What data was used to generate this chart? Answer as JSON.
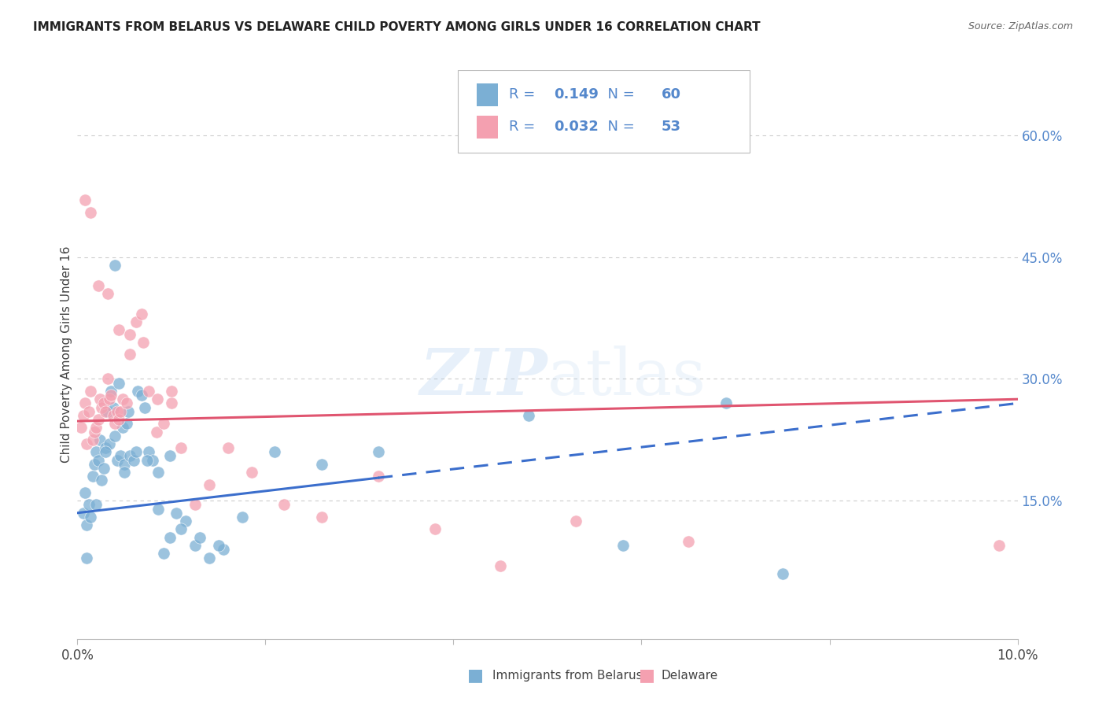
{
  "title": "IMMIGRANTS FROM BELARUS VS DELAWARE CHILD POVERTY AMONG GIRLS UNDER 16 CORRELATION CHART",
  "source": "Source: ZipAtlas.com",
  "ylabel": "Child Poverty Among Girls Under 16",
  "xlim": [
    0.0,
    10.0
  ],
  "ylim": [
    -2.0,
    68.0
  ],
  "right_yticks": [
    15.0,
    30.0,
    45.0,
    60.0
  ],
  "right_ytick_labels": [
    "15.0%",
    "30.0%",
    "45.0%",
    "60.0%"
  ],
  "legend_r1": "0.149",
  "legend_n1": "60",
  "legend_r2": "0.032",
  "legend_n2": "53",
  "blue_color": "#7BAFD4",
  "pink_color": "#F4A0B0",
  "blue_line_color": "#3B6ECC",
  "pink_line_color": "#E05570",
  "text_color": "#5588CC",
  "blue_scatter_x": [
    0.06,
    0.08,
    0.1,
    0.12,
    0.14,
    0.16,
    0.18,
    0.2,
    0.22,
    0.24,
    0.26,
    0.28,
    0.3,
    0.32,
    0.34,
    0.36,
    0.38,
    0.4,
    0.42,
    0.44,
    0.46,
    0.48,
    0.5,
    0.52,
    0.54,
    0.56,
    0.6,
    0.64,
    0.68,
    0.72,
    0.76,
    0.8,
    0.86,
    0.92,
    0.98,
    1.05,
    1.15,
    1.25,
    1.4,
    1.55,
    0.1,
    0.2,
    0.3,
    0.4,
    0.5,
    0.62,
    0.74,
    0.86,
    0.98,
    1.1,
    1.3,
    1.5,
    1.75,
    2.1,
    2.6,
    3.2,
    4.8,
    5.8,
    6.9,
    7.5
  ],
  "blue_scatter_y": [
    13.5,
    16.0,
    12.0,
    14.5,
    13.0,
    18.0,
    19.5,
    21.0,
    20.0,
    22.5,
    17.5,
    19.0,
    21.5,
    26.0,
    22.0,
    28.5,
    26.5,
    23.0,
    20.0,
    29.5,
    20.5,
    24.0,
    19.5,
    24.5,
    26.0,
    20.5,
    20.0,
    28.5,
    28.0,
    26.5,
    21.0,
    20.0,
    14.0,
    8.5,
    10.5,
    13.5,
    12.5,
    9.5,
    8.0,
    9.0,
    8.0,
    14.5,
    21.0,
    44.0,
    18.5,
    21.0,
    20.0,
    18.5,
    20.5,
    11.5,
    10.5,
    9.5,
    13.0,
    21.0,
    19.5,
    21.0,
    25.5,
    9.5,
    27.0,
    6.0
  ],
  "pink_scatter_x": [
    0.04,
    0.06,
    0.08,
    0.1,
    0.12,
    0.14,
    0.16,
    0.18,
    0.2,
    0.22,
    0.24,
    0.26,
    0.28,
    0.3,
    0.32,
    0.34,
    0.36,
    0.38,
    0.4,
    0.42,
    0.44,
    0.46,
    0.48,
    0.52,
    0.56,
    0.62,
    0.68,
    0.76,
    0.84,
    0.92,
    1.0,
    1.1,
    1.25,
    1.4,
    1.6,
    1.85,
    2.2,
    2.6,
    3.8,
    4.5,
    0.08,
    0.14,
    0.22,
    0.32,
    0.44,
    0.56,
    0.7,
    0.85,
    1.0,
    3.2,
    5.3,
    6.5,
    9.8
  ],
  "pink_scatter_y": [
    24.0,
    25.5,
    27.0,
    22.0,
    26.0,
    28.5,
    22.5,
    23.5,
    24.0,
    25.0,
    27.5,
    26.5,
    27.0,
    26.0,
    30.0,
    27.5,
    28.0,
    25.5,
    24.5,
    26.0,
    25.0,
    26.0,
    27.5,
    27.0,
    33.0,
    37.0,
    38.0,
    28.5,
    23.5,
    24.5,
    27.0,
    21.5,
    14.5,
    17.0,
    21.5,
    18.5,
    14.5,
    13.0,
    11.5,
    7.0,
    52.0,
    50.5,
    41.5,
    40.5,
    36.0,
    35.5,
    34.5,
    27.5,
    28.5,
    18.0,
    12.5,
    10.0,
    9.5
  ],
  "blue_trend_x": [
    0.0,
    10.0
  ],
  "blue_trend_y": [
    13.5,
    27.0
  ],
  "blue_solid_end": 3.2,
  "pink_trend_x": [
    0.0,
    10.0
  ],
  "pink_trend_y": [
    24.8,
    27.5
  ],
  "watermark_zip": "ZIP",
  "watermark_atlas": "atlas",
  "background_color": "#FFFFFF",
  "grid_color": "#CCCCCC",
  "title_color": "#222222",
  "source_color": "#666666"
}
